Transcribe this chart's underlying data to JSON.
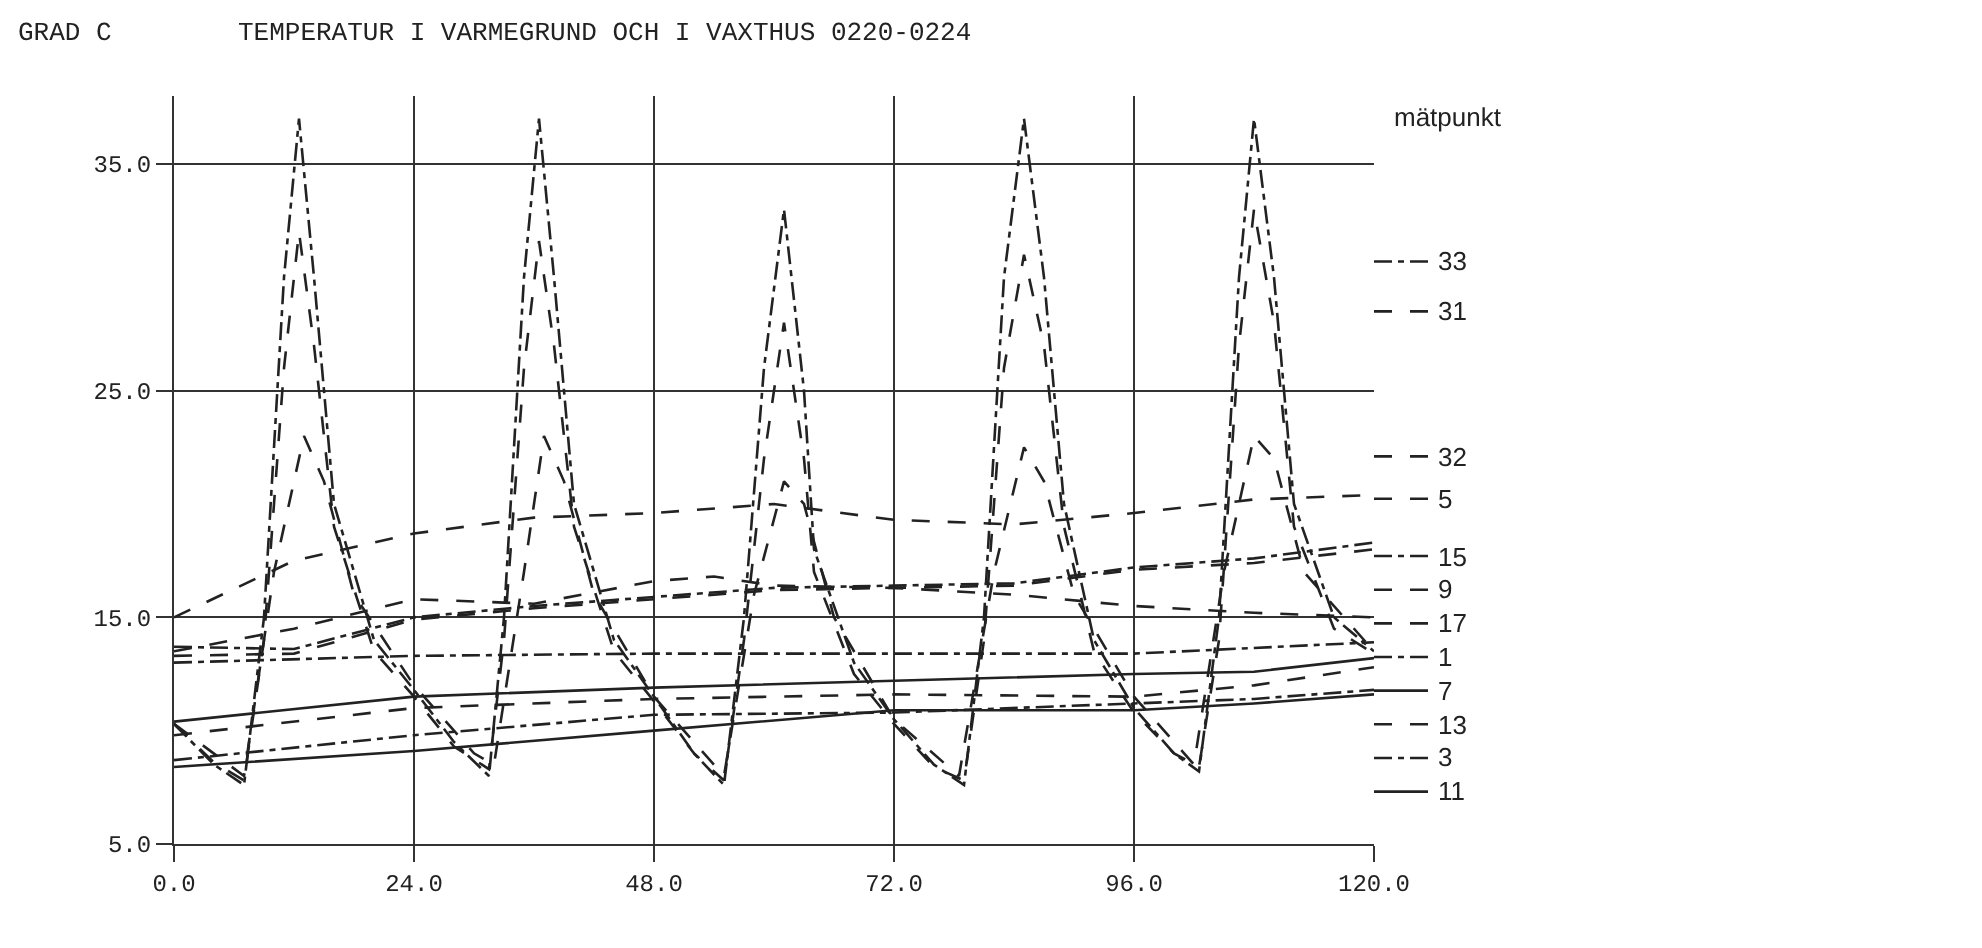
{
  "chart_data": {
    "type": "line",
    "title": "TEMPERATUR I VARMEGRUND OCH I VAXTHUS 0220-0224",
    "ylabel": "GRAD C",
    "legend_title": "mätpunkt",
    "xlim": [
      0,
      120
    ],
    "ylim": [
      5,
      38
    ],
    "xticks": [
      {
        "value": 0,
        "label": "0.0"
      },
      {
        "value": 24,
        "label": "24.0"
      },
      {
        "value": 48,
        "label": "48.0"
      },
      {
        "value": 72,
        "label": "72.0"
      },
      {
        "value": 96,
        "label": "96.0"
      },
      {
        "value": 120,
        "label": "120.0"
      }
    ],
    "yticks": [
      {
        "value": 5,
        "label": "5.0"
      },
      {
        "value": 15,
        "label": "15.0"
      },
      {
        "value": 25,
        "label": "25.0"
      },
      {
        "value": 35,
        "label": "35.0"
      }
    ],
    "grid": true,
    "legend": "right",
    "marker": "none",
    "series": [
      {
        "name": "33",
        "color": "#222222",
        "line_style": "dotted",
        "x": [
          0,
          4,
          7,
          9,
          11,
          12.5,
          14,
          16,
          20,
          24,
          28,
          31.5,
          33,
          35,
          36.5,
          38,
          40,
          44,
          48,
          52,
          55,
          57,
          59,
          61,
          63,
          64,
          68,
          72,
          76,
          79,
          81,
          83,
          85,
          87,
          89,
          92,
          96,
          100,
          102.5,
          104.5,
          106.5,
          108,
          110,
          112,
          116,
          120
        ],
        "values": [
          10.3,
          8.5,
          7.6,
          15,
          30,
          37,
          30,
          20,
          14,
          11.8,
          9.5,
          8,
          15,
          30,
          37,
          30,
          20,
          14,
          11.5,
          9,
          7.6,
          15,
          26,
          33,
          25,
          18,
          13,
          10.5,
          8.5,
          7.6,
          15,
          30,
          37,
          30,
          20,
          14,
          11,
          9,
          8.2,
          15,
          30,
          37,
          30,
          20,
          15,
          13.5
        ]
      },
      {
        "name": "31",
        "color": "#222222",
        "line_style": "dashed",
        "x": [
          0,
          4,
          7,
          9,
          11,
          12.5,
          14,
          16,
          20,
          24,
          28,
          31.5,
          33,
          35,
          36.5,
          38,
          40,
          44,
          48,
          52,
          55,
          57,
          59,
          61,
          63,
          64,
          68,
          72,
          76,
          79,
          81,
          83,
          85,
          87,
          89,
          92,
          96,
          100,
          102.5,
          104.5,
          106.5,
          108,
          110,
          112,
          116,
          120
        ],
        "values": [
          10.3,
          8.6,
          7.8,
          14,
          26,
          32,
          27,
          19,
          13.5,
          11.5,
          9.3,
          8.3,
          14,
          26,
          31.6,
          27,
          19,
          13.5,
          11.3,
          9,
          7.8,
          14,
          22,
          28,
          22,
          17,
          12.5,
          10.3,
          8.4,
          7.8,
          14,
          26,
          31,
          27,
          19,
          13.5,
          10.8,
          9,
          8.4,
          14,
          27,
          33,
          28,
          19,
          14.5,
          13.4
        ]
      },
      {
        "name": "32",
        "color": "#222222",
        "line_style": "dashed",
        "x": [
          0,
          7,
          10,
          13,
          15,
          18,
          24,
          30,
          32,
          35,
          37,
          39,
          42,
          48,
          55,
          58,
          61,
          63,
          66,
          72,
          78.5,
          82,
          85,
          87,
          90,
          96,
          102,
          105,
          108,
          110,
          113,
          120
        ],
        "values": [
          10.3,
          8,
          17,
          23,
          21,
          16,
          12,
          9,
          8.5,
          17,
          23,
          21,
          16,
          11.5,
          8,
          16,
          21,
          20,
          15,
          10.5,
          8,
          17,
          22.5,
          21,
          16,
          11.5,
          8.5,
          17,
          23,
          22,
          17,
          13.5
        ]
      },
      {
        "name": "5",
        "color": "#222222",
        "line_style": "dashed",
        "x": [
          0,
          12,
          24,
          36,
          48,
          60,
          72,
          84,
          96,
          108,
          120
        ],
        "values": [
          15.0,
          17.5,
          18.7,
          19.4,
          19.6,
          20.0,
          19.3,
          19.1,
          19.6,
          20.2,
          20.4
        ]
      },
      {
        "name": "15",
        "color": "#222222",
        "line_style": "dotted",
        "x": [
          0,
          12,
          24,
          36,
          48,
          60,
          72,
          84,
          96,
          108,
          120
        ],
        "values": [
          13.7,
          13.6,
          15.0,
          15.5,
          15.9,
          16.3,
          16.4,
          16.5,
          17.2,
          17.6,
          18.3
        ]
      },
      {
        "name": "9",
        "color": "#222222",
        "line_style": "dashed",
        "x": [
          0,
          12,
          24,
          36,
          48,
          60,
          72,
          84,
          96,
          108,
          120
        ],
        "values": [
          13.3,
          13.4,
          14.9,
          15.4,
          15.8,
          16.2,
          16.3,
          16.4,
          17.1,
          17.4,
          18.0
        ]
      },
      {
        "name": "17",
        "color": "#222222",
        "line_style": "dashed",
        "x": [
          0,
          12,
          24,
          36,
          48,
          54,
          60,
          72,
          84,
          96,
          108,
          120
        ],
        "values": [
          13.5,
          14.5,
          15.8,
          15.6,
          16.6,
          16.8,
          16.4,
          16.3,
          16.0,
          15.5,
          15.2,
          15.0
        ]
      },
      {
        "name": "1",
        "color": "#222222",
        "line_style": "dotted",
        "x": [
          0,
          24,
          48,
          72,
          96,
          120
        ],
        "values": [
          13.0,
          13.3,
          13.4,
          13.4,
          13.4,
          13.9
        ]
      },
      {
        "name": "7",
        "color": "#222222",
        "line_style": "solid",
        "x": [
          0,
          24,
          48,
          72,
          96,
          108,
          120
        ],
        "values": [
          10.4,
          11.5,
          11.9,
          12.2,
          12.5,
          12.6,
          13.2
        ]
      },
      {
        "name": "13",
        "color": "#222222",
        "line_style": "dashed",
        "x": [
          0,
          24,
          48,
          72,
          96,
          108,
          120
        ],
        "values": [
          9.8,
          11.0,
          11.4,
          11.6,
          11.5,
          12.0,
          12.8
        ]
      },
      {
        "name": "3",
        "color": "#222222",
        "line_style": "dotted",
        "x": [
          0,
          24,
          48,
          72,
          96,
          108,
          120
        ],
        "values": [
          8.7,
          9.8,
          10.7,
          10.8,
          11.2,
          11.4,
          11.8
        ]
      },
      {
        "name": "11",
        "color": "#222222",
        "line_style": "solid",
        "x": [
          0,
          24,
          48,
          72,
          96,
          108,
          120
        ],
        "values": [
          8.4,
          9.1,
          10.0,
          10.9,
          10.9,
          11.2,
          11.6
        ]
      }
    ]
  }
}
